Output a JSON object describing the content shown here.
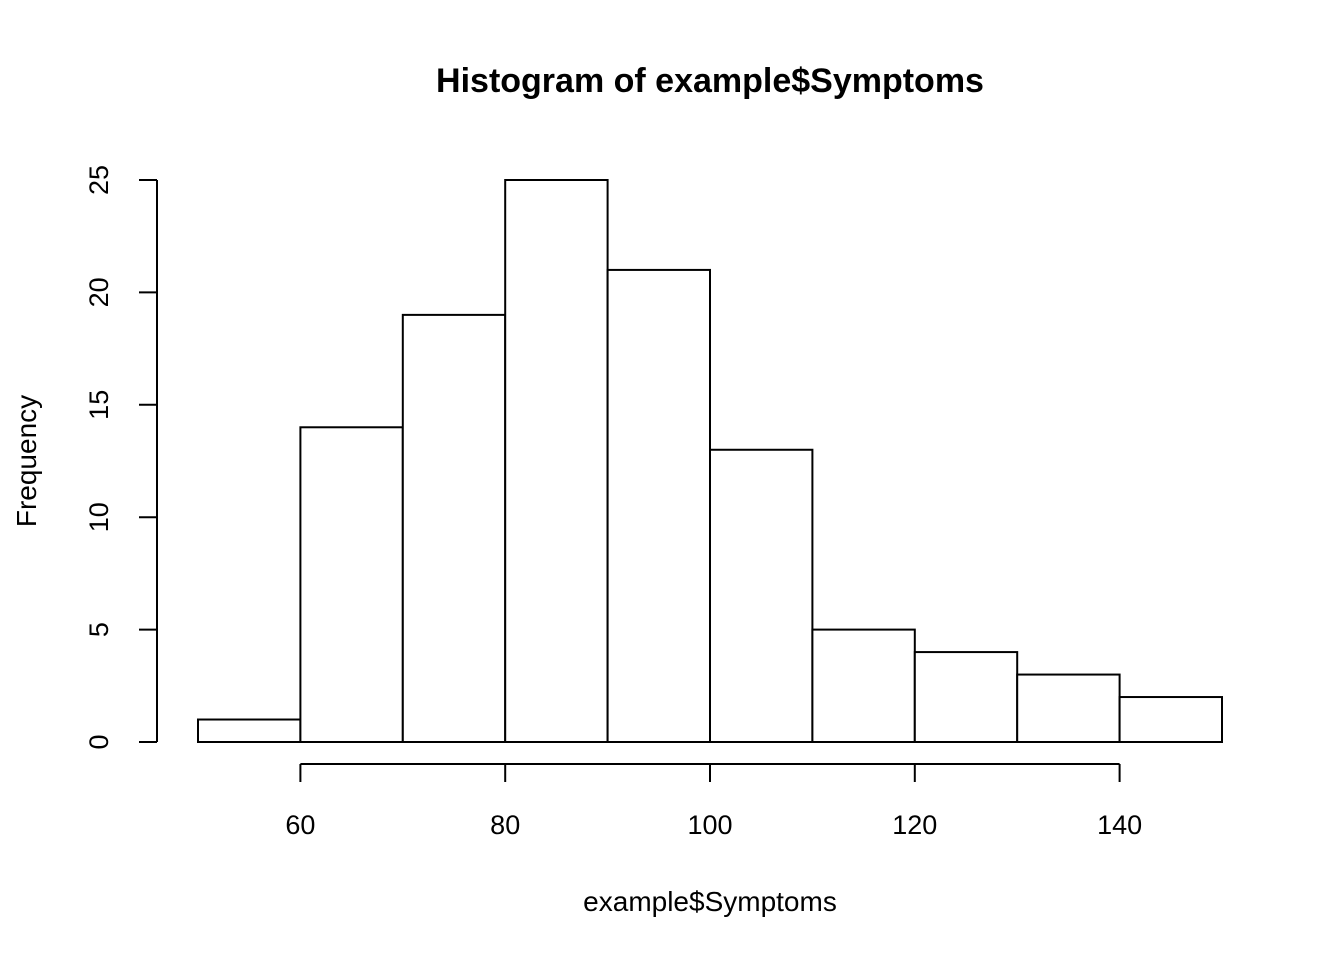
{
  "chart_data": {
    "type": "bar",
    "title": "Histogram of example$Symptoms",
    "xlabel": "example$Symptoms",
    "ylabel": "Frequency",
    "bins": [
      {
        "start": 50,
        "end": 60,
        "count": 1
      },
      {
        "start": 60,
        "end": 70,
        "count": 14
      },
      {
        "start": 70,
        "end": 80,
        "count": 19
      },
      {
        "start": 80,
        "end": 90,
        "count": 25
      },
      {
        "start": 90,
        "end": 100,
        "count": 21
      },
      {
        "start": 100,
        "end": 110,
        "count": 13
      },
      {
        "start": 110,
        "end": 120,
        "count": 5
      },
      {
        "start": 120,
        "end": 130,
        "count": 4
      },
      {
        "start": 130,
        "end": 140,
        "count": 3
      },
      {
        "start": 140,
        "end": 150,
        "count": 2
      }
    ],
    "xlim": [
      50,
      150
    ],
    "ylim": [
      0,
      25
    ],
    "x_ticks": [
      60,
      80,
      100,
      120,
      140
    ],
    "x_tick_labels": [
      "60",
      "80",
      "100",
      "120",
      "140"
    ],
    "y_ticks": [
      0,
      5,
      10,
      15,
      20,
      25
    ],
    "y_tick_labels": [
      "0",
      "5",
      "10",
      "15",
      "20",
      "25"
    ],
    "grid": false,
    "legend": "none"
  }
}
